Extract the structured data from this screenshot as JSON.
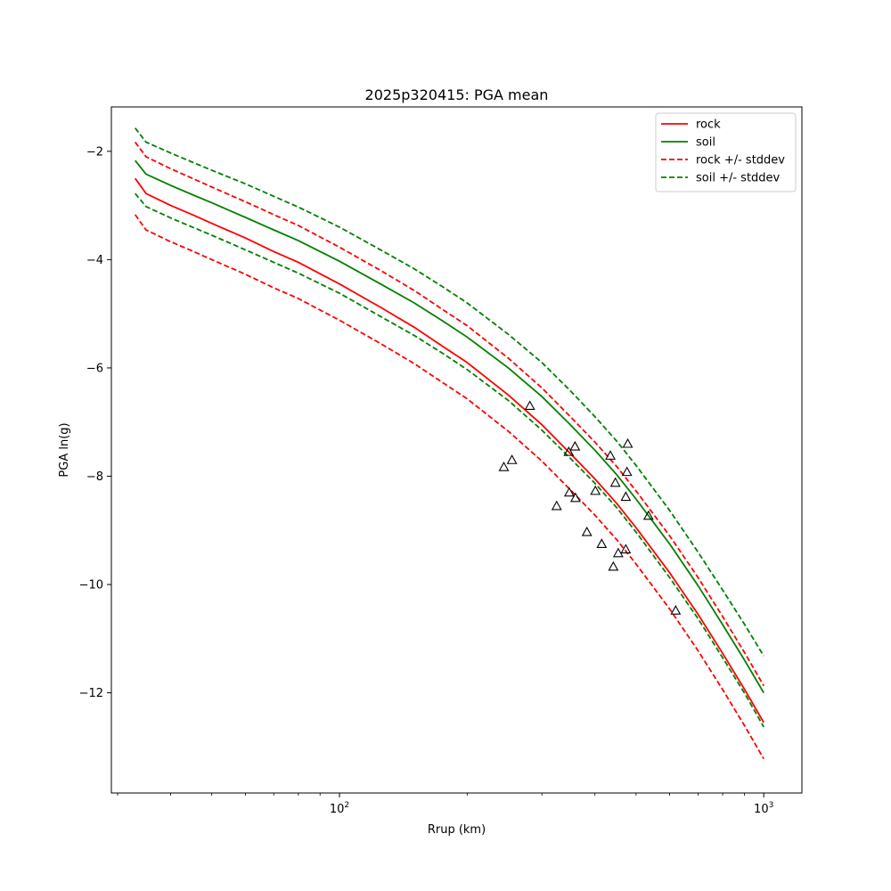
{
  "chart_data": {
    "type": "line",
    "title": "2025p320415: PGA mean",
    "xlabel": "Rrup (km)",
    "ylabel": "PGA ln(g)",
    "xscale": "log",
    "xlim": [
      29,
      1230
    ],
    "ylim": [
      -13.85,
      -1.18
    ],
    "x_major_ticks": [
      {
        "value": 100,
        "base": "10",
        "exp": "2"
      },
      {
        "value": 1000,
        "base": "10",
        "exp": "3"
      }
    ],
    "y_ticks": [
      -12,
      -10,
      -8,
      -6,
      -4,
      -2
    ],
    "grid": false,
    "legend_position": "top-right",
    "colors": {
      "rock": "#ff0000",
      "soil": "#008000",
      "points": "#000000"
    },
    "x": [
      33,
      35,
      40,
      45,
      50,
      60,
      70,
      80,
      100,
      125,
      150,
      175,
      200,
      250,
      300,
      350,
      400,
      450,
      500,
      600,
      700,
      800,
      900,
      1000
    ],
    "series": [
      {
        "name": "rock",
        "color": "#ff0000",
        "style": "solid",
        "values": [
          -2.5,
          -2.78,
          -3.0,
          -3.17,
          -3.33,
          -3.6,
          -3.85,
          -4.05,
          -4.45,
          -4.88,
          -5.25,
          -5.6,
          -5.9,
          -6.5,
          -7.05,
          -7.58,
          -8.05,
          -8.5,
          -8.95,
          -9.78,
          -10.55,
          -11.27,
          -11.93,
          -12.55
        ]
      },
      {
        "name": "soil",
        "color": "#008000",
        "style": "solid",
        "values": [
          -2.17,
          -2.42,
          -2.63,
          -2.8,
          -2.95,
          -3.22,
          -3.45,
          -3.65,
          -4.03,
          -4.45,
          -4.8,
          -5.13,
          -5.43,
          -6.0,
          -6.53,
          -7.05,
          -7.52,
          -7.97,
          -8.42,
          -9.25,
          -10.02,
          -10.74,
          -11.39,
          -12.0
        ]
      },
      {
        "name": "rock +/- stddev",
        "color": "#ff0000",
        "style": "dashed",
        "values": [
          -1.83,
          -2.1,
          -2.32,
          -2.5,
          -2.66,
          -2.93,
          -3.17,
          -3.37,
          -3.77,
          -4.2,
          -4.57,
          -4.92,
          -5.22,
          -5.82,
          -6.37,
          -6.9,
          -7.37,
          -7.82,
          -8.27,
          -9.1,
          -9.87,
          -10.59,
          -11.25,
          -11.87
        ]
      },
      {
        "values": [
          -3.17,
          -3.45,
          -3.67,
          -3.84,
          -4.0,
          -4.27,
          -4.52,
          -4.72,
          -5.12,
          -5.55,
          -5.92,
          -6.27,
          -6.57,
          -7.17,
          -7.72,
          -8.25,
          -8.72,
          -9.17,
          -9.62,
          -10.45,
          -11.22,
          -11.94,
          -12.6,
          -13.22
        ]
      },
      {
        "name": "soil +/- stddev",
        "color": "#008000",
        "style": "dashed",
        "values": [
          -1.57,
          -1.83,
          -2.03,
          -2.2,
          -2.35,
          -2.6,
          -2.83,
          -3.03,
          -3.4,
          -3.82,
          -4.17,
          -4.5,
          -4.8,
          -5.38,
          -5.9,
          -6.42,
          -6.9,
          -7.35,
          -7.8,
          -8.63,
          -9.4,
          -10.1,
          -10.73,
          -11.32
        ]
      },
      {
        "values": [
          -2.78,
          -3.02,
          -3.23,
          -3.4,
          -3.55,
          -3.82,
          -4.05,
          -4.25,
          -4.62,
          -5.05,
          -5.4,
          -5.73,
          -6.03,
          -6.6,
          -7.15,
          -7.67,
          -8.13,
          -8.58,
          -9.03,
          -9.87,
          -10.63,
          -11.35,
          -12.0,
          -12.63
        ]
      }
    ],
    "observations": [
      {
        "x": 244,
        "y": -7.83
      },
      {
        "x": 255,
        "y": -7.7
      },
      {
        "x": 281,
        "y": -6.7
      },
      {
        "x": 325,
        "y": -8.55
      },
      {
        "x": 347,
        "y": -7.55
      },
      {
        "x": 348,
        "y": -8.3
      },
      {
        "x": 359,
        "y": -7.45
      },
      {
        "x": 360,
        "y": -8.4
      },
      {
        "x": 383,
        "y": -9.03
      },
      {
        "x": 401,
        "y": -8.27
      },
      {
        "x": 415,
        "y": -9.25
      },
      {
        "x": 435,
        "y": -7.62
      },
      {
        "x": 442,
        "y": -9.67
      },
      {
        "x": 447,
        "y": -8.12
      },
      {
        "x": 454,
        "y": -9.42
      },
      {
        "x": 473,
        "y": -9.35
      },
      {
        "x": 473,
        "y": -8.38
      },
      {
        "x": 476,
        "y": -7.92
      },
      {
        "x": 478,
        "y": -7.4
      },
      {
        "x": 535,
        "y": -8.73
      },
      {
        "x": 620,
        "y": -10.48
      }
    ],
    "legend": [
      {
        "label": "rock",
        "color": "#ff0000",
        "style": "solid"
      },
      {
        "label": "soil",
        "color": "#008000",
        "style": "solid"
      },
      {
        "label": "rock +/- stddev",
        "color": "#ff0000",
        "style": "dashed"
      },
      {
        "label": "soil +/- stddev",
        "color": "#008000",
        "style": "dashed"
      }
    ]
  }
}
